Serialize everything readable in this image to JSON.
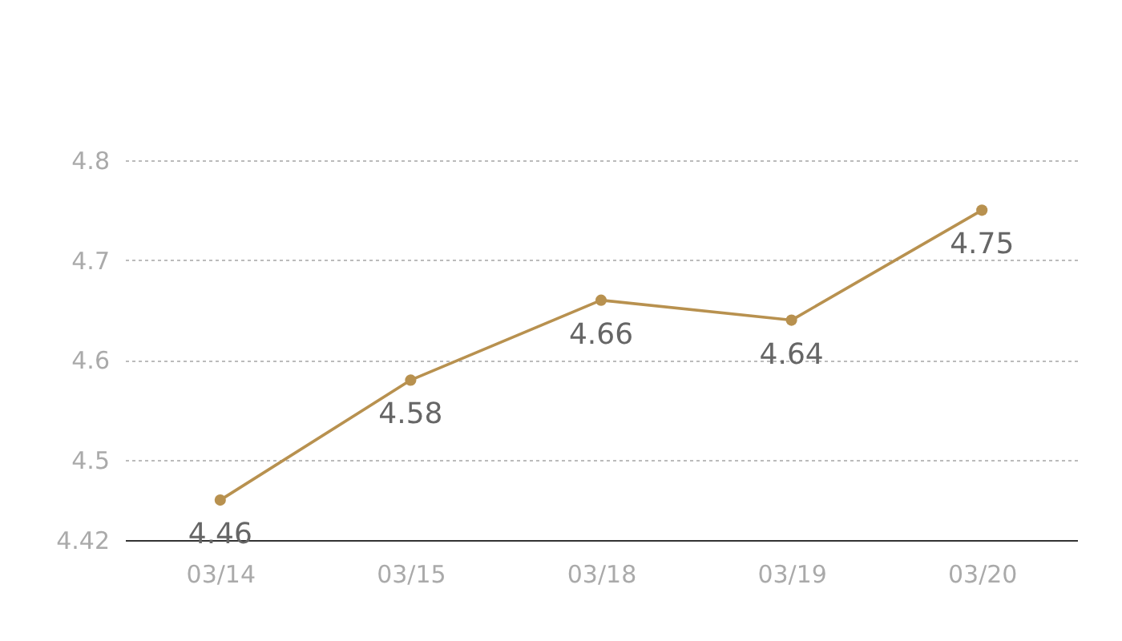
{
  "chart_data": {
    "type": "line",
    "categories": [
      "03/14",
      "03/15",
      "03/18",
      "03/19",
      "03/20"
    ],
    "series": [
      {
        "color": "#b8914f",
        "values": [
          4.46,
          4.58,
          4.66,
          4.64,
          4.75
        ]
      }
    ],
    "ylim": [
      4.42,
      4.8
    ],
    "yticks": [
      4.42,
      4.5,
      4.6,
      4.7,
      4.8
    ],
    "grid": "y",
    "marker": "circle",
    "data_labels": true
  }
}
